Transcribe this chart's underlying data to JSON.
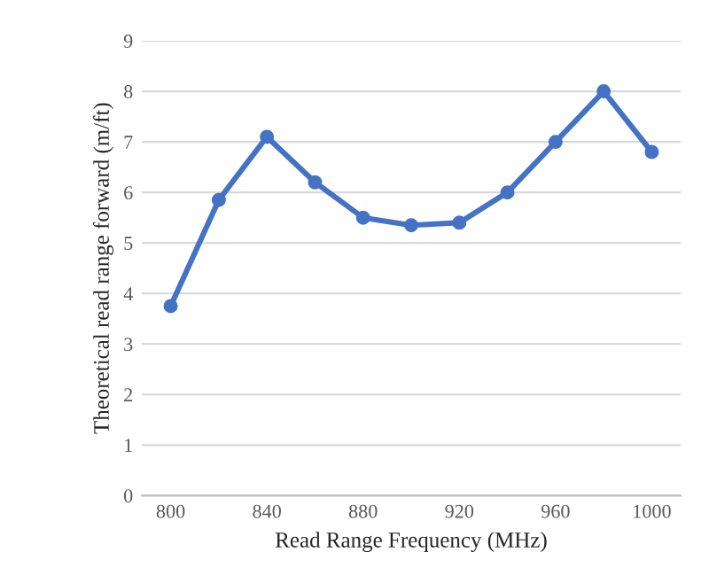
{
  "chart_data": {
    "type": "line",
    "xlabel": "Read Range Frequency (MHz)",
    "ylabel": "Theoretical read range forward (m/ft)",
    "x": [
      800,
      820,
      840,
      860,
      880,
      900,
      920,
      940,
      960,
      980,
      1000
    ],
    "series": [
      {
        "color": "#4472c4",
        "values": [
          3.75,
          5.85,
          7.1,
          6.2,
          5.5,
          5.35,
          5.4,
          6.0,
          7.0,
          8.0,
          6.8
        ]
      }
    ],
    "xlim": [
      788,
      1012
    ],
    "xticks": [
      800,
      840,
      880,
      920,
      960,
      1000
    ],
    "ylim": [
      0,
      9
    ],
    "yticks": [
      0,
      1,
      2,
      3,
      4,
      5,
      6,
      7,
      8,
      9
    ],
    "grid": "y",
    "marker": "circle",
    "line_style": "solid",
    "legend": false
  }
}
